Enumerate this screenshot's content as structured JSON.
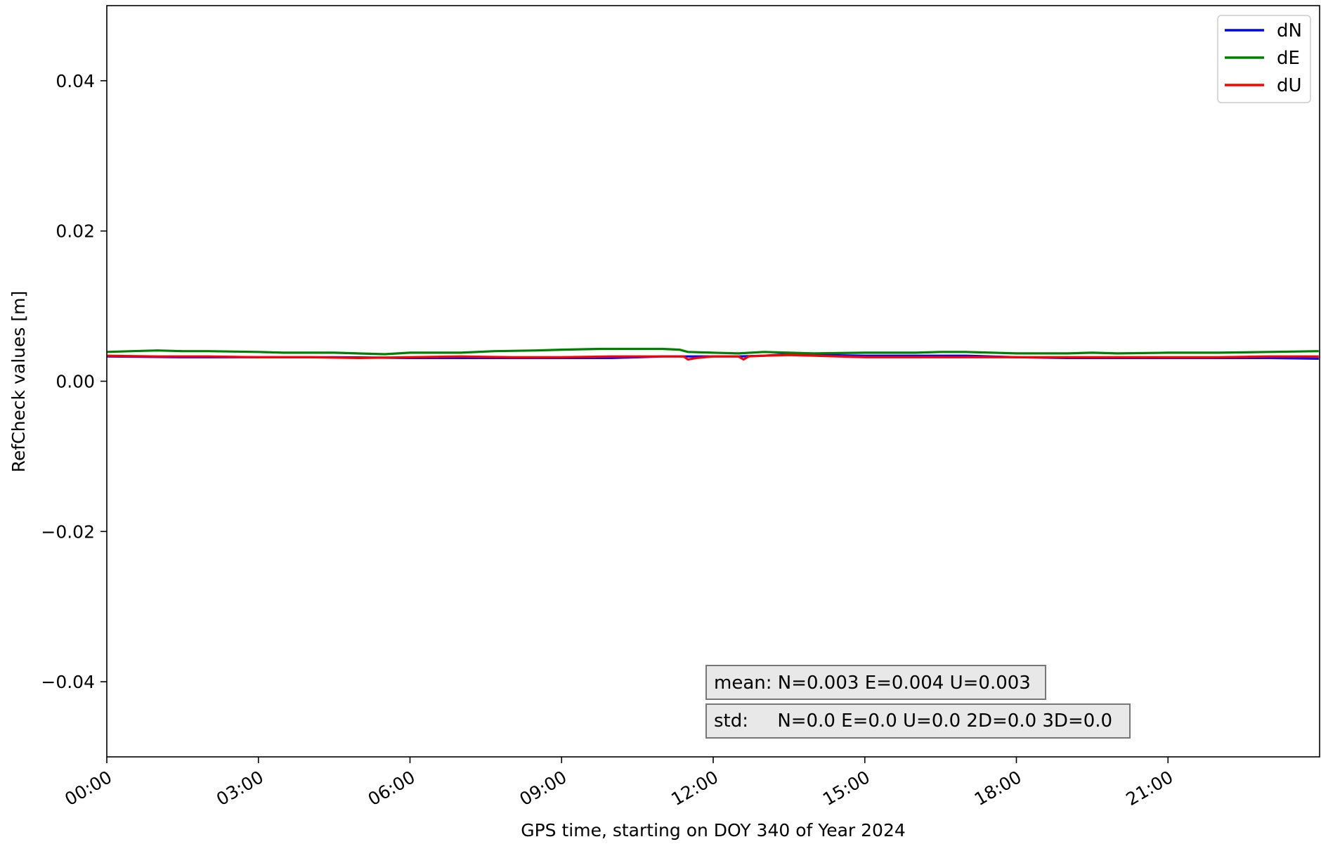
{
  "chart_data": {
    "type": "line",
    "title": "",
    "xlabel": "GPS time, starting on DOY 340 of Year 2024",
    "ylabel": "RefCheck values [m]",
    "xlim": [
      "00:00",
      "24:00"
    ],
    "ylim": [
      -0.05,
      0.05
    ],
    "x_ticks": [
      "00:00",
      "03:00",
      "06:00",
      "09:00",
      "12:00",
      "15:00",
      "18:00",
      "21:00"
    ],
    "y_ticks": [
      {
        "value": 0.04,
        "label": "0.04"
      },
      {
        "value": 0.02,
        "label": "0.02"
      },
      {
        "value": 0.0,
        "label": "0.00"
      },
      {
        "value": -0.02,
        "label": "−0.02"
      },
      {
        "value": -0.04,
        "label": "−0.04"
      }
    ],
    "grid": false,
    "legend_position": "top-right",
    "series": [
      {
        "name": "dN",
        "color": "#0000ff",
        "x": [
          "00:00",
          "01:30",
          "03:00",
          "04:30",
          "06:00",
          "07:30",
          "09:00",
          "10:00",
          "11:00",
          "11:30",
          "12:00",
          "12:30",
          "13:00",
          "13:30",
          "14:00",
          "15:00",
          "16:00",
          "17:00",
          "18:00",
          "19:00",
          "20:00",
          "21:00",
          "22:00",
          "23:00",
          "23:59"
        ],
        "values": [
          0.0033,
          0.0032,
          0.0032,
          0.0032,
          0.0031,
          0.0031,
          0.0031,
          0.0031,
          0.0033,
          0.0033,
          0.0033,
          0.0033,
          0.0034,
          0.0036,
          0.0035,
          0.0034,
          0.0034,
          0.0034,
          0.0032,
          0.0031,
          0.0031,
          0.0031,
          0.0031,
          0.0031,
          0.003
        ]
      },
      {
        "name": "dE",
        "color": "#008000",
        "x": [
          "00:00",
          "00:30",
          "01:00",
          "01:30",
          "02:00",
          "03:00",
          "03:30",
          "04:30",
          "05:30",
          "06:00",
          "07:00",
          "07:40",
          "08:30",
          "09:00",
          "09:45",
          "10:30",
          "11:00",
          "11:20",
          "11:30",
          "12:00",
          "12:30",
          "13:00",
          "13:30",
          "14:00",
          "15:00",
          "16:00",
          "16:30",
          "17:00",
          "18:00",
          "19:00",
          "19:30",
          "20:00",
          "21:00",
          "22:00",
          "23:00",
          "23:59"
        ],
        "values": [
          0.0039,
          0.004,
          0.0041,
          0.004,
          0.004,
          0.0039,
          0.0038,
          0.0038,
          0.0036,
          0.0038,
          0.0038,
          0.004,
          0.0041,
          0.0042,
          0.0043,
          0.0043,
          0.0043,
          0.0042,
          0.0039,
          0.0038,
          0.0037,
          0.0039,
          0.0038,
          0.0037,
          0.0038,
          0.0038,
          0.0039,
          0.0039,
          0.0037,
          0.0037,
          0.0038,
          0.0037,
          0.0038,
          0.0038,
          0.0039,
          0.004
        ]
      },
      {
        "name": "dU",
        "color": "#ff0000",
        "x": [
          "00:00",
          "01:00",
          "02:00",
          "03:00",
          "04:00",
          "05:00",
          "06:00",
          "07:00",
          "08:00",
          "09:00",
          "10:00",
          "11:00",
          "11:25",
          "11:30",
          "11:40",
          "12:00",
          "12:30",
          "12:36",
          "12:42",
          "13:00",
          "13:30",
          "14:00",
          "15:00",
          "16:00",
          "17:00",
          "18:00",
          "19:00",
          "20:00",
          "21:00",
          "22:00",
          "23:00",
          "23:59"
        ],
        "values": [
          0.0034,
          0.0033,
          0.0033,
          0.0032,
          0.0032,
          0.0031,
          0.0032,
          0.0033,
          0.0032,
          0.0032,
          0.0033,
          0.0033,
          0.0033,
          0.0029,
          0.0031,
          0.0033,
          0.0033,
          0.0029,
          0.0033,
          0.0034,
          0.0035,
          0.0034,
          0.0032,
          0.0032,
          0.0032,
          0.0032,
          0.0032,
          0.0032,
          0.0032,
          0.0032,
          0.0033,
          0.0033
        ]
      }
    ],
    "annotations": [
      {
        "name": "mean",
        "text": "mean: N=0.003 E=0.004 U=0.003"
      },
      {
        "name": "std",
        "text": "std:     N=0.0 E=0.0 U=0.0 2D=0.0 3D=0.0"
      }
    ]
  }
}
